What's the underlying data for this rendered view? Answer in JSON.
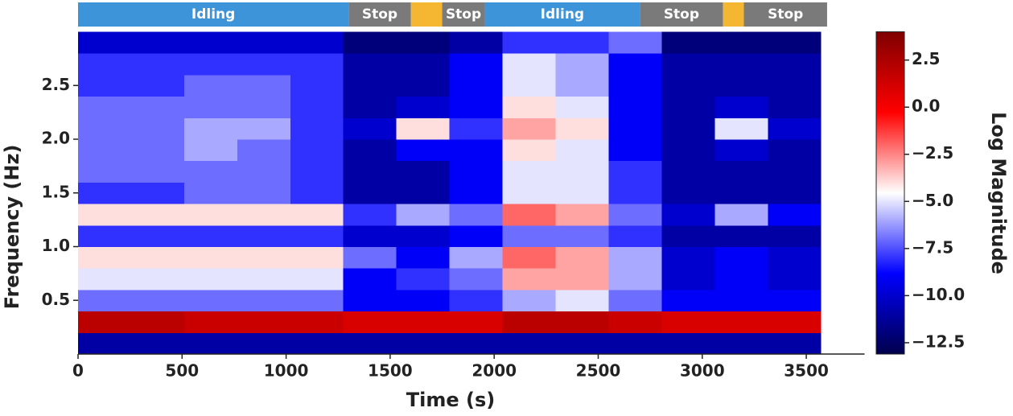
{
  "chart_data": {
    "type": "heatmap",
    "x_label": "Time (s)",
    "y_label": "Frequency (Hz)",
    "colorbar_label": "Log Magnitude",
    "xlim": [
      0,
      3780
    ],
    "xticks": [
      0,
      500,
      1000,
      1500,
      2000,
      2500,
      3000,
      3500
    ],
    "ylim": [
      0,
      3.0
    ],
    "yticks": [
      0.5,
      {
        "value": 1.0,
        "label": "1.0"
      },
      1.5,
      {
        "value": 2.0,
        "label": "2.0"
      },
      2.5
    ],
    "clim": [
      -13.1,
      4.0
    ],
    "cticks": [
      2.5,
      {
        "value": 0,
        "label": "0.0"
      },
      {
        "value": -2.5,
        "label": "−2.5"
      },
      {
        "value": -5.0,
        "label": "−5.0"
      },
      {
        "value": -7.5,
        "label": "−7.5"
      },
      {
        "value": -10.0,
        "label": "−10.0"
      },
      {
        "value": -12.5,
        "label": "−12.5"
      }
    ],
    "colormap": [
      "#00004c",
      "#0000ff",
      "#ffffff",
      "#ff0000",
      "#7f0000"
    ],
    "time_bins": [
      0,
      255,
      510,
      765,
      1020,
      1275,
      1530,
      1785,
      2040,
      2295,
      2550,
      2805,
      3060,
      3315,
      3570
    ],
    "freq_bins": [
      0,
      0.2,
      0.4,
      0.6,
      0.8,
      1.0,
      1.2,
      1.4,
      1.6,
      1.8,
      2.0,
      2.2,
      2.4,
      2.6,
      2.8,
      3.0
    ],
    "z": [
      [
        -11,
        -11,
        -11,
        -11,
        -11,
        -11,
        -11,
        -11,
        -11,
        -11,
        -11,
        -11,
        -11,
        -11
      ],
      [
        2,
        2,
        1.5,
        1.5,
        1.5,
        1,
        1,
        1,
        2,
        2,
        1.5,
        1,
        1,
        1
      ],
      [
        -7,
        -7,
        -7,
        -7,
        -7,
        -9,
        -9,
        -8,
        -6,
        -5,
        -7,
        -9,
        -9,
        -9
      ],
      [
        -5,
        -5,
        -5,
        -5,
        -5,
        -9,
        -8,
        -7,
        -3,
        -3,
        -6,
        -10,
        -9,
        -10
      ],
      [
        -4,
        -4,
        -4,
        -4,
        -4,
        -7,
        -9,
        -6,
        -2,
        -3,
        -6,
        -10,
        -9,
        -10
      ],
      [
        -8,
        -8,
        -8,
        -8,
        -8,
        -10,
        -10,
        -9,
        -7,
        -7,
        -8,
        -11,
        -11,
        -11
      ],
      [
        -4,
        -4,
        -4,
        -4,
        -4,
        -8,
        -6,
        -7,
        -2,
        -3,
        -7,
        -10,
        -6,
        -9
      ],
      [
        -8,
        -8,
        -7,
        -7,
        -8,
        -11,
        -11,
        -9,
        -5,
        -5,
        -8,
        -11,
        -11,
        -11
      ],
      [
        -7,
        -7,
        -7,
        -7,
        -8,
        -11,
        -11,
        -9,
        -5,
        -5,
        -8,
        -11,
        -11,
        -11
      ],
      [
        -7,
        -7,
        -6,
        -7,
        -8,
        -11,
        -9,
        -9,
        -4,
        -5,
        -9,
        -11,
        -10,
        -11
      ],
      [
        -7,
        -7,
        -6,
        -6,
        -8,
        -10,
        -4,
        -8,
        -3,
        -4,
        -9,
        -11,
        -5,
        -10
      ],
      [
        -7,
        -7,
        -7,
        -7,
        -8,
        -11,
        -10,
        -9,
        -4,
        -5,
        -9,
        -11,
        -10,
        -11
      ],
      [
        -8,
        -8,
        -7,
        -7,
        -8,
        -11,
        -11,
        -9,
        -5,
        -6,
        -9,
        -11,
        -11,
        -11
      ],
      [
        -8,
        -8,
        -8,
        -8,
        -8,
        -11,
        -11,
        -9,
        -5,
        -6,
        -9,
        -11,
        -11,
        -11
      ],
      [
        -10,
        -10,
        -10,
        -10,
        -10,
        -12,
        -12,
        -11,
        -8,
        -8,
        -7,
        -12,
        -12,
        -12
      ]
    ],
    "segments": [
      {
        "label": "Idling",
        "start": 0,
        "end": 1300,
        "color": "#3d94d8"
      },
      {
        "label": "Stop",
        "start": 1300,
        "end": 1600,
        "color": "#7a7a7a"
      },
      {
        "start": 1600,
        "end": 1750,
        "color": "#f5b731"
      },
      {
        "label": "Stop",
        "start": 1750,
        "end": 1955,
        "color": "#7a7a7a"
      },
      {
        "label": "Idling",
        "start": 1955,
        "end": 2700,
        "color": "#3d94d8"
      },
      {
        "label": "Stop",
        "start": 2700,
        "end": 3100,
        "color": "#7a7a7a"
      },
      {
        "start": 3100,
        "end": 3200,
        "color": "#f5b731"
      },
      {
        "label": "Stop",
        "start": 3200,
        "end": 3600,
        "color": "#7a7a7a"
      }
    ]
  }
}
